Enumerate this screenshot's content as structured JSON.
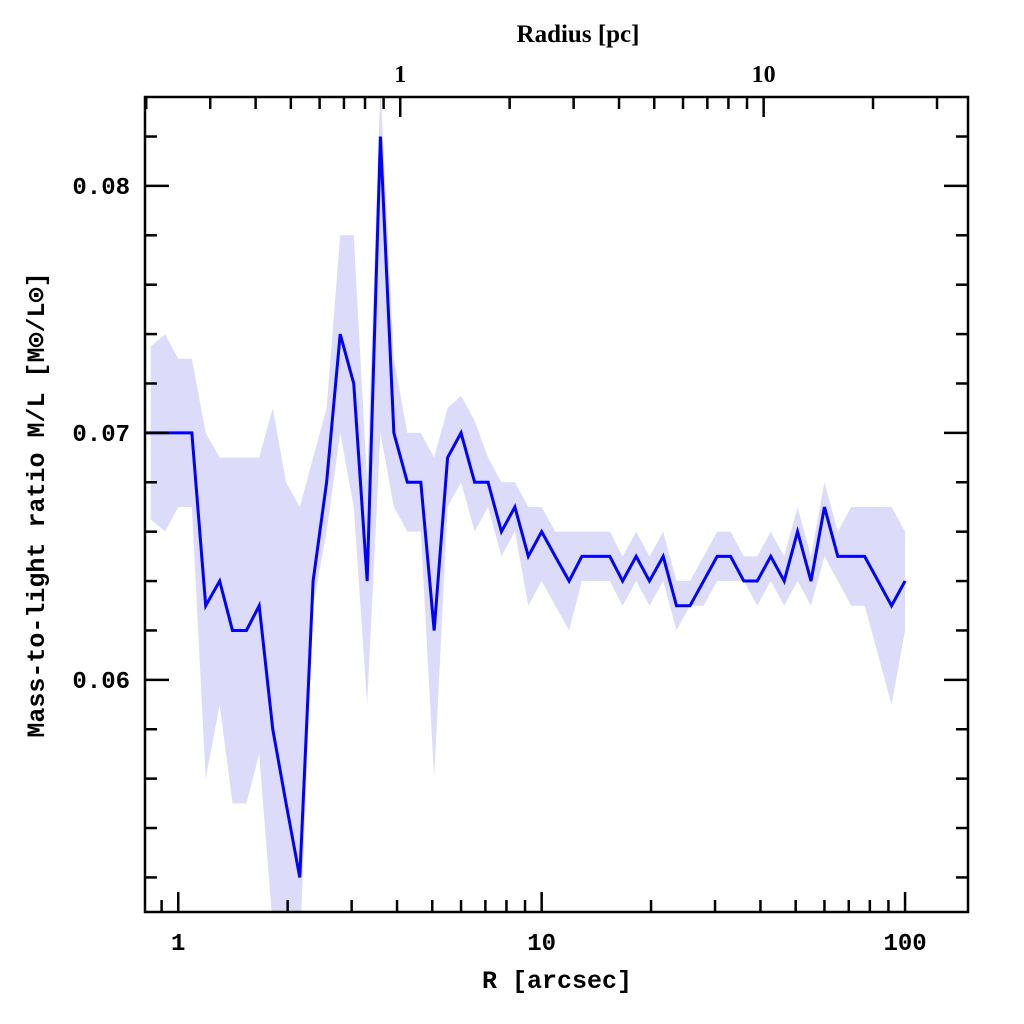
{
  "chart_data": {
    "type": "line",
    "title": "",
    "xlabel": "R [arcsec]",
    "ylabel": "Mass-to-light ratio M/L [M⊙/L⊙]",
    "top_xlabel": "Radius [pc]",
    "xscale": "log",
    "xlim": [
      0.81,
      149
    ],
    "ylim": [
      0.0506,
      0.0836
    ],
    "pc_per_arcsec": 0.245,
    "x_ticks": [
      {
        "value": 1,
        "label": "1"
      },
      {
        "value": 10,
        "label": "10"
      },
      {
        "value": 100,
        "label": "100"
      }
    ],
    "top_ticks": [
      {
        "value": 1,
        "label": "1"
      },
      {
        "value": 10,
        "label": "10"
      }
    ],
    "y_ticks": [
      {
        "value": 0.06,
        "label": "0.06"
      },
      {
        "value": 0.07,
        "label": "0.07"
      },
      {
        "value": 0.08,
        "label": "0.08"
      }
    ],
    "grid": false,
    "colors": {
      "line": "#0000ff",
      "band": "#dcdcfa"
    },
    "series": [
      {
        "name": "M/L",
        "x": [
          0.84,
          0.92,
          1.0,
          1.09,
          1.19,
          1.3,
          1.41,
          1.54,
          1.67,
          1.82,
          1.98,
          2.16,
          2.35,
          2.56,
          2.79,
          3.04,
          3.31,
          3.6,
          3.92,
          4.27,
          4.65,
          5.06,
          5.51,
          6.0,
          6.54,
          7.12,
          7.75,
          8.44,
          9.19,
          10.0,
          10.9,
          11.9,
          12.9,
          14.1,
          15.4,
          16.7,
          18.2,
          19.8,
          21.6,
          23.5,
          25.6,
          27.9,
          30.4,
          33.1,
          36.0,
          39.2,
          42.7,
          46.5,
          50.6,
          55.1,
          60.0,
          65.3,
          71.1,
          77.4,
          84.3,
          91.8,
          100
        ],
        "values": [
          0.07,
          0.07,
          0.07,
          0.07,
          0.063,
          0.064,
          0.062,
          0.062,
          0.063,
          0.058,
          0.055,
          0.052,
          0.064,
          0.068,
          0.074,
          0.072,
          0.064,
          0.082,
          0.07,
          0.068,
          0.068,
          0.062,
          0.069,
          0.07,
          0.068,
          0.068,
          0.066,
          0.067,
          0.065,
          0.066,
          0.065,
          0.064,
          0.065,
          0.065,
          0.065,
          0.064,
          0.065,
          0.064,
          0.065,
          0.063,
          0.063,
          0.064,
          0.065,
          0.065,
          0.064,
          0.064,
          0.065,
          0.064,
          0.066,
          0.064,
          0.067,
          0.065,
          0.065,
          0.065,
          0.064,
          0.063,
          0.064
        ],
        "upper": [
          0.0735,
          0.074,
          0.073,
          0.073,
          0.07,
          0.069,
          0.069,
          0.069,
          0.069,
          0.071,
          0.068,
          0.067,
          0.069,
          0.071,
          0.078,
          0.078,
          0.068,
          0.084,
          0.073,
          0.07,
          0.07,
          0.069,
          0.071,
          0.0715,
          0.0705,
          0.069,
          0.068,
          0.068,
          0.067,
          0.067,
          0.066,
          0.066,
          0.066,
          0.066,
          0.066,
          0.065,
          0.066,
          0.065,
          0.066,
          0.064,
          0.064,
          0.065,
          0.066,
          0.066,
          0.065,
          0.065,
          0.066,
          0.065,
          0.067,
          0.065,
          0.068,
          0.066,
          0.067,
          0.067,
          0.067,
          0.067,
          0.066
        ],
        "lower": [
          0.0665,
          0.066,
          0.067,
          0.067,
          0.056,
          0.059,
          0.055,
          0.055,
          0.057,
          0.05,
          0.049,
          0.049,
          0.063,
          0.066,
          0.07,
          0.067,
          0.059,
          0.07,
          0.067,
          0.066,
          0.066,
          0.056,
          0.067,
          0.068,
          0.066,
          0.067,
          0.065,
          0.066,
          0.063,
          0.064,
          0.063,
          0.062,
          0.064,
          0.064,
          0.064,
          0.063,
          0.064,
          0.063,
          0.064,
          0.062,
          0.063,
          0.063,
          0.064,
          0.064,
          0.064,
          0.063,
          0.064,
          0.063,
          0.064,
          0.063,
          0.065,
          0.064,
          0.063,
          0.063,
          0.061,
          0.059,
          0.062
        ]
      }
    ]
  }
}
